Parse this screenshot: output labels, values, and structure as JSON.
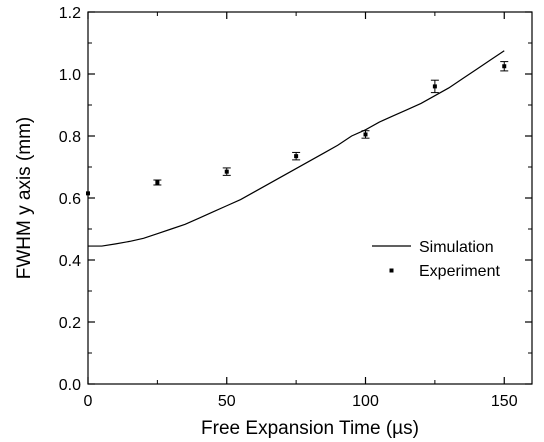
{
  "chart_data": {
    "type": "scatter",
    "title": "",
    "xlabel": "Free Expansion Time (µs)",
    "ylabel": "FWHM y axis (mm)",
    "xlim": [
      0,
      160
    ],
    "ylim": [
      0,
      1.2
    ],
    "x_ticks": [
      0,
      50,
      100,
      150
    ],
    "y_ticks": [
      0.0,
      0.2,
      0.4,
      0.6,
      0.8,
      1.0,
      1.2
    ],
    "x_tick_labels": [
      "0",
      "50",
      "100",
      "150"
    ],
    "y_tick_labels": [
      "0.0",
      "0.2",
      "0.4",
      "0.6",
      "0.8",
      "1.0",
      "1.2"
    ],
    "grid": false,
    "legend_position": "right-middle",
    "series": [
      {
        "name": "Simulation",
        "style": "line",
        "color": "#000000",
        "x": [
          0,
          5,
          10,
          15,
          20,
          25,
          30,
          35,
          40,
          45,
          50,
          55,
          60,
          65,
          70,
          75,
          80,
          85,
          90,
          95,
          100,
          105,
          110,
          115,
          120,
          125,
          130,
          135,
          140,
          145,
          150
        ],
        "y": [
          0.445,
          0.445,
          0.452,
          0.46,
          0.47,
          0.485,
          0.5,
          0.515,
          0.535,
          0.555,
          0.575,
          0.595,
          0.62,
          0.645,
          0.67,
          0.695,
          0.72,
          0.745,
          0.77,
          0.8,
          0.82,
          0.845,
          0.865,
          0.885,
          0.905,
          0.93,
          0.955,
          0.985,
          1.015,
          1.045,
          1.075
        ]
      },
      {
        "name": "Experiment",
        "style": "points",
        "color": "#000000",
        "x": [
          0,
          25,
          50,
          75,
          100,
          125,
          150
        ],
        "y": [
          0.615,
          0.65,
          0.685,
          0.735,
          0.805,
          0.96,
          1.025
        ],
        "err": [
          0.0,
          0.008,
          0.012,
          0.012,
          0.012,
          0.02,
          0.015
        ]
      }
    ]
  }
}
